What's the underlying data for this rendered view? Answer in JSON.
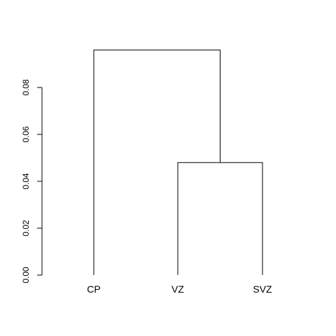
{
  "chart_data": {
    "type": "dendrogram",
    "title": "",
    "xlabel": "",
    "ylabel": "",
    "ylim": [
      0,
      0.1
    ],
    "y_ticks": [
      "0.00",
      "0.02",
      "0.04",
      "0.06",
      "0.08"
    ],
    "leaves": [
      "CP",
      "VZ",
      "SVZ"
    ],
    "merges": [
      {
        "left": "VZ",
        "right": "SVZ",
        "height": 0.048
      },
      {
        "left": "CP",
        "right": "VZ+SVZ",
        "height": 0.096
      }
    ]
  }
}
